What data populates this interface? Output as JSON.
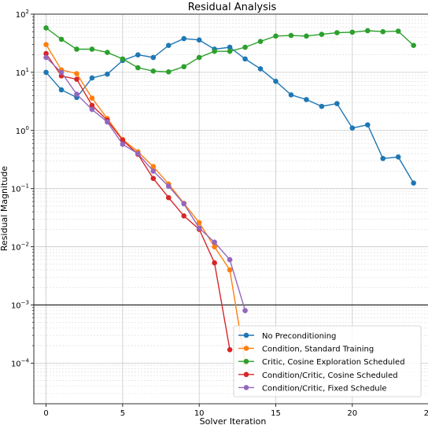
{
  "chart_data": {
    "type": "line",
    "title": "Residual Analysis",
    "xlabel": "Solver Iteration",
    "ylabel": "Residual Magnitude",
    "yscale": "log",
    "xlim": [
      -0.8,
      25.2
    ],
    "ylim": [
      2e-05,
      100
    ],
    "xticks": [
      0,
      5,
      10,
      15,
      20,
      25
    ],
    "yticks": [
      {
        "value": 0.0001,
        "mant": "10",
        "exp": "−4"
      },
      {
        "value": 0.001,
        "mant": "10",
        "exp": "−3"
      },
      {
        "value": 0.01,
        "mant": "10",
        "exp": "−2"
      },
      {
        "value": 0.1,
        "mant": "10",
        "exp": "−1"
      },
      {
        "value": 1,
        "mant": "10",
        "exp": "0"
      },
      {
        "value": 10,
        "mant": "10",
        "exp": "1"
      },
      {
        "value": 100,
        "mant": "10",
        "exp": "2"
      }
    ],
    "grid": true,
    "reference_line": 0.001,
    "legend_position": "lower-right",
    "series": [
      {
        "name": "No Preconditioning",
        "color": "#1f77b4",
        "x": [
          0,
          1,
          2,
          3,
          4,
          5,
          6,
          7,
          8,
          9,
          10,
          11,
          12,
          13,
          14,
          15,
          16,
          17,
          18,
          19,
          20,
          21,
          22,
          23,
          24
        ],
        "y": [
          10,
          5,
          3.7,
          8,
          9.3,
          16,
          20,
          18,
          29,
          38,
          36,
          25,
          27,
          17,
          11.5,
          7,
          4.1,
          3.4,
          2.6,
          2.9,
          1.1,
          1.25,
          0.33,
          0.35,
          0.125
        ]
      },
      {
        "name": "Condition, Standard Training",
        "color": "#ff7f0e",
        "x": [
          0,
          1,
          2,
          3,
          4,
          5,
          6,
          7,
          8,
          9,
          10,
          11,
          12,
          13
        ],
        "y": [
          30,
          11,
          9.5,
          3.6,
          1.6,
          0.7,
          0.43,
          0.24,
          0.12,
          0.056,
          0.026,
          0.01,
          0.004,
          0.0001
        ]
      },
      {
        "name": "Critic, Cosine Exploration Scheduled",
        "color": "#2ca02c",
        "x": [
          0,
          1,
          2,
          3,
          4,
          5,
          6,
          7,
          8,
          9,
          10,
          11,
          12,
          13,
          14,
          15,
          16,
          17,
          18,
          19,
          20,
          21,
          22,
          23,
          24
        ],
        "y": [
          58,
          37,
          25,
          25,
          22,
          17,
          12,
          10.5,
          10.2,
          12.5,
          18,
          23,
          23,
          27,
          34,
          42,
          43,
          42,
          45,
          48,
          49,
          52,
          50,
          51,
          29
        ]
      },
      {
        "name": "Condition/Critic, Cosine Scheduled",
        "color": "#d62728",
        "x": [
          0,
          1,
          2,
          3,
          4,
          5,
          6,
          7,
          8,
          9,
          10,
          11,
          12
        ],
        "y": [
          21,
          8.7,
          7.6,
          2.7,
          1.5,
          0.68,
          0.39,
          0.15,
          0.07,
          0.034,
          0.02,
          0.0053,
          0.00017
        ]
      },
      {
        "name": "Condition/Critic, Fixed Schedule",
        "color": "#9467bd",
        "x": [
          0,
          1,
          2,
          3,
          4,
          5,
          6,
          7,
          8,
          9,
          10,
          11,
          12,
          13
        ],
        "y": [
          18,
          10,
          4.2,
          2.3,
          1.4,
          0.58,
          0.4,
          0.2,
          0.11,
          0.055,
          0.021,
          0.012,
          0.006,
          0.0008
        ]
      }
    ]
  }
}
